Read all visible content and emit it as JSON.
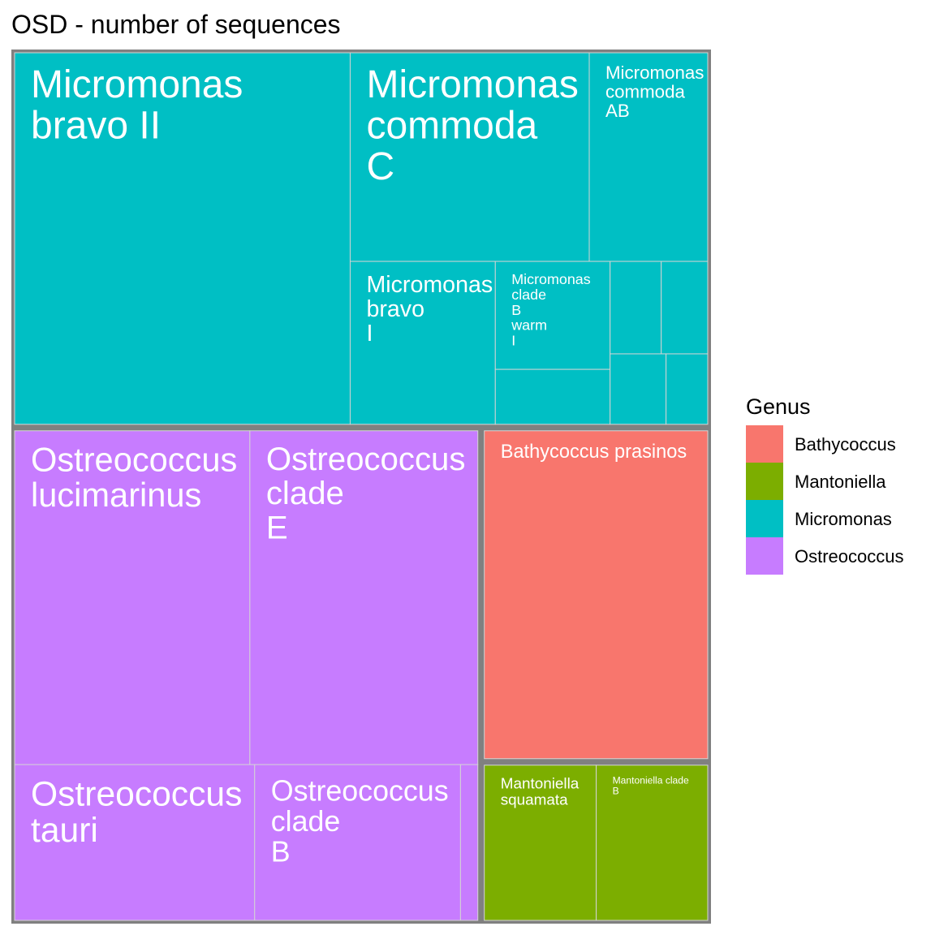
{
  "chart_data": {
    "type": "treemap",
    "title": "OSD - number of sequences",
    "legend": {
      "title": "Genus",
      "placement": "right",
      "entries": [
        {
          "label": "Bathycoccus",
          "color": "#F8766D"
        },
        {
          "label": "Mantoniella",
          "color": "#7CAE00"
        },
        {
          "label": "Micromonas",
          "color": "#00BFC4"
        },
        {
          "label": "Ostreococcus",
          "color": "#C77CFF"
        }
      ]
    },
    "groups": [
      {
        "genus": "Bathycoccus",
        "value": 1131,
        "tiles": [
          {
            "lines": [
              "Bathycoccus prasinos"
            ],
            "value": 1131
          }
        ]
      },
      {
        "genus": "Mantoniella",
        "value": 547,
        "tiles": [
          {
            "lines": [
              "Mantoniella clade",
              "B"
            ],
            "value": 273
          },
          {
            "lines": [
              "Mantoniella",
              "squamata"
            ],
            "value": 274
          }
        ]
      },
      {
        "genus": "Micromonas",
        "value": 3891,
        "tiles": [
          {
            "lines": [
              "Micromonas",
              "bravo II"
            ],
            "value": 1740
          },
          {
            "lines": [
              "Micromonas",
              "commoda",
              "C"
            ],
            "value": 696
          },
          {
            "lines": [
              "Micromonas",
              "commoda",
              "AB"
            ],
            "value": 345
          },
          {
            "lines": [
              "Micromonas",
              "bravo",
              "I"
            ],
            "value": 330
          },
          {
            "lines": [
              "Micromonas",
              "clade",
              "B",
              "warm",
              "I"
            ],
            "value": 173
          },
          {
            "lines": [],
            "value": 88
          },
          {
            "lines": [],
            "value": 66
          },
          {
            "lines": [],
            "value": 55
          },
          {
            "lines": [],
            "value": 60
          },
          {
            "lines": [],
            "value": 41
          }
        ]
      },
      {
        "genus": "Ostreococcus",
        "value": 3428,
        "tiles": [
          {
            "lines": [
              "Ostreococcus",
              "lucimarinus"
            ],
            "value": 1165
          },
          {
            "lines": [
              "Ostreococcus",
              "clade",
              "E"
            ],
            "value": 1129
          },
          {
            "lines": [
              "Ostreococcus",
              "tauri"
            ],
            "value": 555
          },
          {
            "lines": [
              "Ostreococcus",
              "clade",
              "B"
            ],
            "value": 476
          },
          {
            "lines": [],
            "value": 40
          }
        ]
      }
    ]
  }
}
